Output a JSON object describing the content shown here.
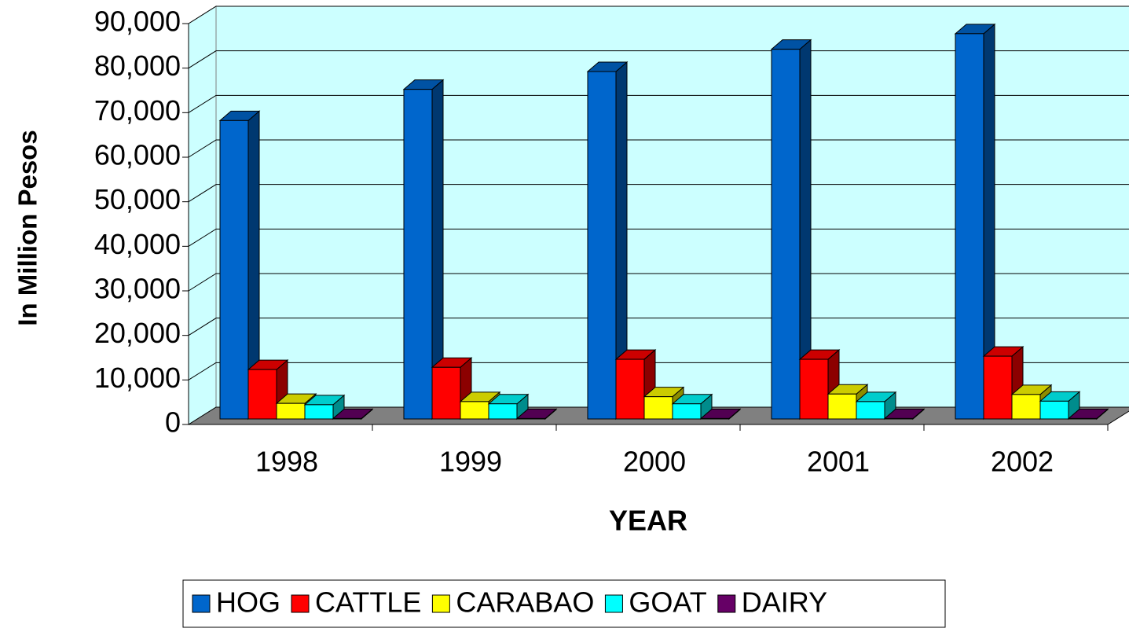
{
  "chart_data": {
    "type": "bar3d",
    "xlabel": "YEAR",
    "ylabel": "In Million Pesos",
    "categories": [
      "1998",
      "1999",
      "2000",
      "2001",
      "2002"
    ],
    "series": [
      {
        "name": "HOG",
        "color": "#0066cc",
        "values": [
          67000,
          74000,
          78000,
          83000,
          86500
        ]
      },
      {
        "name": "CATTLE",
        "color": "#ff0000",
        "values": [
          11100,
          11600,
          13400,
          13400,
          14100
        ]
      },
      {
        "name": "CARABAO",
        "color": "#ffff00",
        "values": [
          3500,
          3900,
          5000,
          5600,
          5500
        ]
      },
      {
        "name": "GOAT",
        "color": "#00ffff",
        "values": [
          3200,
          3400,
          3400,
          3900,
          4000
        ]
      },
      {
        "name": "DAIRY",
        "color": "#660066",
        "values": [
          100,
          100,
          100,
          100,
          100
        ]
      }
    ],
    "ylim": [
      0,
      90000
    ],
    "yticks": [
      0,
      {
        "value": 10000,
        "label": "10,000"
      },
      {
        "value": 20000,
        "label": "20,000"
      },
      {
        "value": 30000,
        "label": "30,000"
      },
      {
        "value": 40000,
        "label": "40,000"
      },
      {
        "value": 50000,
        "label": "50,000"
      },
      {
        "value": 60000,
        "label": "60,000"
      },
      {
        "value": 70000,
        "label": "70,000"
      },
      {
        "value": 80000,
        "label": "80,000"
      },
      {
        "value": 90000,
        "label": "90,000"
      }
    ],
    "grid": true,
    "legend": "bottom"
  }
}
